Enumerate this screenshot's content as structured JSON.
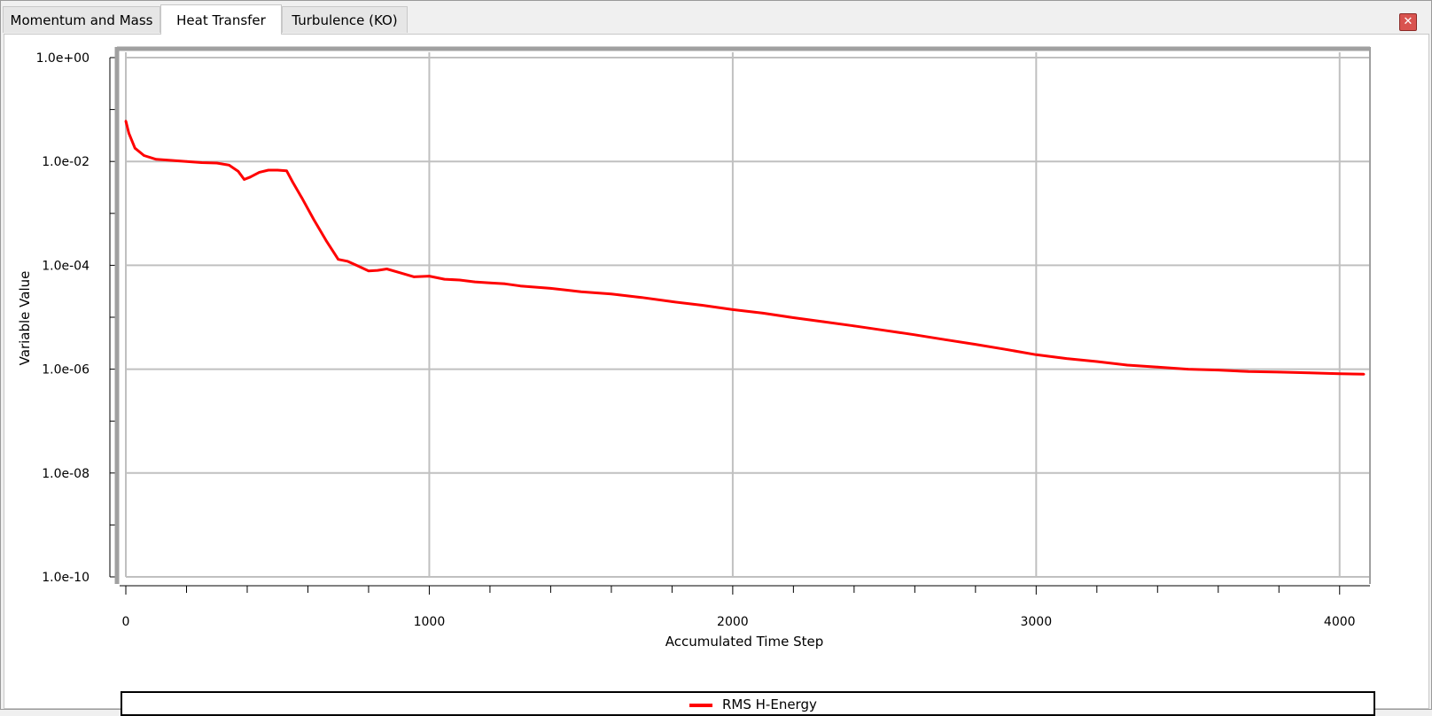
{
  "tabs": [
    {
      "label": "Momentum and Mass",
      "active": false
    },
    {
      "label": "Heat Transfer",
      "active": true
    },
    {
      "label": "Turbulence (KO)",
      "active": false
    }
  ],
  "close_icon": "close-icon",
  "colors": {
    "series": "#ff0000",
    "grid": "#c0c0c0",
    "axis": "#000000"
  },
  "chart_data": {
    "type": "line",
    "xlabel": "Accumulated Time Step",
    "ylabel": "Variable Value",
    "y_scale": "log",
    "xlim": [
      0,
      4100
    ],
    "ylim": [
      1e-10,
      1
    ],
    "x_ticks": [
      0,
      1000,
      2000,
      3000,
      4000
    ],
    "x_tick_labels": [
      "0",
      "1000",
      "2000",
      "3000",
      "4000"
    ],
    "y_ticks": [
      1,
      0.01,
      0.0001,
      1e-06,
      1e-08,
      1e-10
    ],
    "y_tick_labels": [
      "1.0e+00",
      "1.0e-02",
      "1.0e-04",
      "1.0e-06",
      "1.0e-08",
      "1.0e-10"
    ],
    "grid": true,
    "legend_position": "bottom",
    "series": [
      {
        "name": "RMS H-Energy",
        "color": "#ff0000",
        "x": [
          0,
          10,
          30,
          60,
          100,
          150,
          200,
          250,
          300,
          340,
          370,
          390,
          410,
          440,
          470,
          500,
          530,
          550,
          580,
          620,
          660,
          700,
          730,
          760,
          800,
          830,
          860,
          900,
          950,
          1000,
          1050,
          1100,
          1150,
          1200,
          1250,
          1300,
          1400,
          1500,
          1600,
          1700,
          1800,
          1900,
          2000,
          2100,
          2200,
          2300,
          2400,
          2500,
          2600,
          2700,
          2800,
          2900,
          3000,
          3100,
          3200,
          3300,
          3400,
          3500,
          3600,
          3700,
          3800,
          3900,
          4000,
          4080
        ],
        "y": [
          0.06,
          0.035,
          0.018,
          0.013,
          0.011,
          0.0105,
          0.01,
          0.0095,
          0.0093,
          0.0085,
          0.0065,
          0.0045,
          0.005,
          0.0062,
          0.0068,
          0.0068,
          0.0066,
          0.004,
          0.002,
          0.00075,
          0.0003,
          0.00013,
          0.00012,
          0.0001,
          7.8e-05,
          8e-05,
          8.5e-05,
          7.3e-05,
          6e-05,
          6.2e-05,
          5.4e-05,
          5.2e-05,
          4.8e-05,
          4.6e-05,
          4.4e-05,
          4e-05,
          3.6e-05,
          3.1e-05,
          2.8e-05,
          2.4e-05,
          2e-05,
          1.7e-05,
          1.4e-05,
          1.2e-05,
          9.8e-06,
          8.2e-06,
          6.8e-06,
          5.6e-06,
          4.6e-06,
          3.7e-06,
          3e-06,
          2.4e-06,
          1.9e-06,
          1.6e-06,
          1.4e-06,
          1.2e-06,
          1.1e-06,
          1e-06,
          9.6e-07,
          9e-07,
          8.8e-07,
          8.5e-07,
          8.2e-07,
          8e-07
        ]
      }
    ]
  },
  "legend": {
    "label": "RMS H-Energy"
  }
}
